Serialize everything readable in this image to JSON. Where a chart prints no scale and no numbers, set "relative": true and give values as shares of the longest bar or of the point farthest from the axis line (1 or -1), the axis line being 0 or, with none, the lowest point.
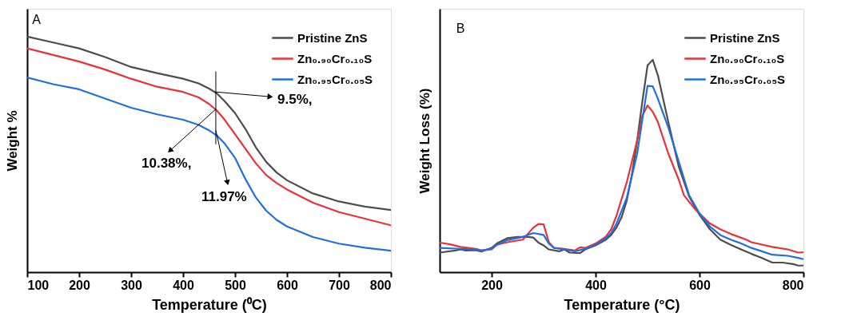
{
  "chart_data": [
    {
      "type": "line",
      "relative": true,
      "xlabel": "Temperature (⁰C)",
      "ylabel": "Weight %",
      "xlim": [
        100,
        800
      ],
      "xticks": [
        100,
        200,
        300,
        400,
        500,
        600,
        700,
        800
      ],
      "grid": false,
      "legend": "top right",
      "marker": "none",
      "line_style": "solid",
      "annotations": [
        "A",
        "9.5%,",
        "10.38%,",
        "11.97%"
      ],
      "x": [
        100,
        150,
        200,
        250,
        300,
        350,
        400,
        430,
        450,
        465,
        480,
        500,
        520,
        540,
        560,
        580,
        600,
        650,
        700,
        750,
        800
      ],
      "series": [
        {
          "name": "Pristine ZnS",
          "color": "#4d4d4d",
          "values": [
            1,
            0.975,
            0.95,
            0.913,
            0.871,
            0.845,
            0.821,
            0.801,
            0.779,
            0.759,
            0.726,
            0.675,
            0.608,
            0.53,
            0.468,
            0.423,
            0.39,
            0.334,
            0.3,
            0.278,
            0.264
          ]
        },
        {
          "name": "Zn₀.₉₀Cr₀.₁₀S",
          "color": "#e8323a",
          "values": [
            0.95,
            0.922,
            0.894,
            0.86,
            0.821,
            0.787,
            0.765,
            0.742,
            0.714,
            0.686,
            0.647,
            0.586,
            0.524,
            0.462,
            0.412,
            0.378,
            0.351,
            0.295,
            0.255,
            0.227,
            0.199
          ]
        },
        {
          "name": "Zn₀.₉₅Cr₀.₀₅S",
          "color": "#1f6fe0",
          "values": [
            0.826,
            0.798,
            0.776,
            0.737,
            0.698,
            0.67,
            0.647,
            0.625,
            0.602,
            0.58,
            0.546,
            0.485,
            0.395,
            0.317,
            0.261,
            0.222,
            0.194,
            0.149,
            0.121,
            0.104,
            0.091
          ]
        }
      ]
    },
    {
      "type": "line",
      "relative": true,
      "xlabel": "Temperature (°C)",
      "ylabel": "Weight Loss (%)",
      "xlim": [
        100,
        800
      ],
      "xticks": [
        200,
        400,
        600,
        800
      ],
      "grid": false,
      "legend": "top right",
      "marker": "none",
      "line_style": "solid",
      "annotations": [
        "B"
      ],
      "series": [
        {
          "name": "Pristine ZnS",
          "color": "#4d4d4d",
          "x": [
            100,
            130,
            140,
            150,
            170,
            180,
            200,
            210,
            230,
            250,
            270,
            280,
            290,
            300,
            310,
            330,
            340,
            350,
            370,
            380,
            400,
            420,
            430,
            440,
            450,
            460,
            470,
            480,
            490,
            500,
            510,
            520,
            530,
            540,
            560,
            580,
            590,
            600,
            620,
            640,
            660,
            680,
            700,
            720,
            740,
            760,
            780,
            790,
            800
          ],
          "values": [
            0.092,
            0.102,
            0.107,
            0.102,
            0.104,
            0.097,
            0.114,
            0.135,
            0.16,
            0.166,
            0.166,
            0.163,
            0.139,
            0.126,
            0.107,
            0.098,
            0.107,
            0.092,
            0.09,
            0.107,
            0.126,
            0.153,
            0.175,
            0.209,
            0.258,
            0.337,
            0.46,
            0.62,
            0.804,
            0.973,
            1,
            0.926,
            0.816,
            0.706,
            0.497,
            0.356,
            0.313,
            0.27,
            0.202,
            0.153,
            0.129,
            0.107,
            0.086,
            0.067,
            0.045,
            0.045,
            0.038,
            0.031,
            0.031
          ]
        },
        {
          "name": "Zn₀.₉₀Cr₀.₁₀S",
          "color": "#e8323a",
          "x": [
            100,
            120,
            140,
            170,
            180,
            200,
            210,
            230,
            260,
            280,
            290,
            300,
            310,
            320,
            340,
            360,
            370,
            380,
            400,
            420,
            430,
            440,
            460,
            480,
            490,
            500,
            510,
            520,
            540,
            560,
            570,
            590,
            600,
            620,
            640,
            660,
            690,
            700,
            740,
            770,
            790,
            800
          ],
          "values": [
            0.139,
            0.131,
            0.119,
            0.11,
            0.102,
            0.107,
            0.129,
            0.141,
            0.153,
            0.209,
            0.227,
            0.225,
            0.141,
            0.114,
            0.11,
            0.102,
            0.117,
            0.114,
            0.135,
            0.168,
            0.202,
            0.264,
            0.423,
            0.62,
            0.736,
            0.785,
            0.755,
            0.706,
            0.558,
            0.436,
            0.362,
            0.301,
            0.276,
            0.229,
            0.202,
            0.18,
            0.153,
            0.141,
            0.119,
            0.107,
            0.092,
            0.094
          ]
        },
        {
          "name": "Zn₀.₉₅Cr₀.₀₅S",
          "color": "#1f6fe0",
          "x": [
            100,
            140,
            170,
            180,
            200,
            210,
            230,
            260,
            280,
            300,
            310,
            320,
            340,
            360,
            380,
            400,
            420,
            430,
            440,
            460,
            480,
            490,
            500,
            510,
            520,
            540,
            560,
            580,
            600,
            620,
            640,
            660,
            680,
            700,
            720,
            740,
            770,
            790,
            800
          ],
          "values": [
            0.114,
            0.11,
            0.107,
            0.102,
            0.11,
            0.129,
            0.151,
            0.166,
            0.184,
            0.175,
            0.135,
            0.114,
            0.107,
            0.098,
            0.11,
            0.129,
            0.16,
            0.184,
            0.227,
            0.35,
            0.558,
            0.718,
            0.877,
            0.875,
            0.816,
            0.681,
            0.521,
            0.362,
            0.276,
            0.215,
            0.175,
            0.153,
            0.135,
            0.114,
            0.098,
            0.082,
            0.077,
            0.067,
            0.061
          ]
        }
      ]
    }
  ]
}
